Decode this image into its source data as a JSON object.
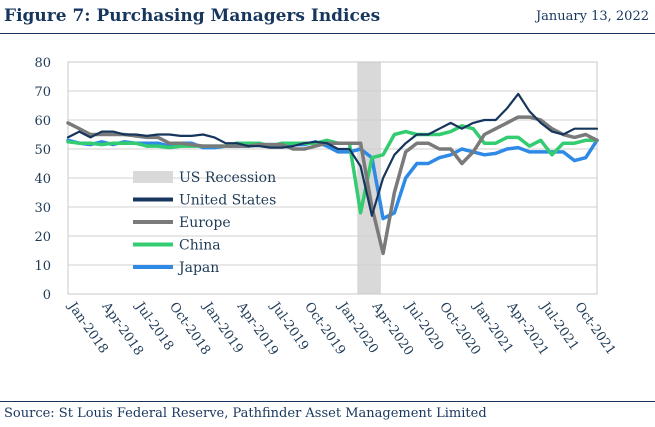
{
  "header": {
    "title": "Figure 7: Purchasing Managers Indices",
    "date": "January 13, 2022"
  },
  "footer": {
    "source": "Source: St Louis Federal Reserve, Pathfinder Asset Management Limited"
  },
  "chart_data": {
    "type": "line",
    "title": "",
    "xlabel": "",
    "ylabel": "",
    "ylim": [
      0,
      80
    ],
    "yticks": [
      0,
      10,
      20,
      30,
      40,
      50,
      60,
      70,
      80
    ],
    "grid": "horizontal",
    "legend_position": "center-left",
    "x_tick_labels": [
      "Jan-2018",
      "Apr-2018",
      "Jul-2018",
      "Oct-2018",
      "Jan-2019",
      "Apr-2019",
      "Jul-2019",
      "Oct-2019",
      "Jan-2020",
      "Apr-2020",
      "Jul-2020",
      "Oct-2020",
      "Jan-2021",
      "Apr-2021",
      "Jul-2021",
      "Oct-2021"
    ],
    "recession": {
      "label": "US Recession",
      "start_month_index": 25.7,
      "end_month_index": 27.8,
      "color": "#d9d9d9"
    },
    "x_months": [
      "Jan-2018",
      "Feb-2018",
      "Mar-2018",
      "Apr-2018",
      "May-2018",
      "Jun-2018",
      "Jul-2018",
      "Aug-2018",
      "Sep-2018",
      "Oct-2018",
      "Nov-2018",
      "Dec-2018",
      "Jan-2019",
      "Feb-2019",
      "Mar-2019",
      "Apr-2019",
      "May-2019",
      "Jun-2019",
      "Jul-2019",
      "Aug-2019",
      "Sep-2019",
      "Oct-2019",
      "Nov-2019",
      "Dec-2019",
      "Jan-2020",
      "Feb-2020",
      "Mar-2020",
      "Apr-2020",
      "May-2020",
      "Jun-2020",
      "Jul-2020",
      "Aug-2020",
      "Sep-2020",
      "Oct-2020",
      "Nov-2020",
      "Dec-2020",
      "Jan-2021",
      "Feb-2021",
      "Mar-2021",
      "Apr-2021",
      "May-2021",
      "Jun-2021",
      "Jul-2021",
      "Aug-2021",
      "Sep-2021",
      "Oct-2021",
      "Nov-2021",
      "Dec-2021"
    ],
    "series": [
      {
        "name": "Japan",
        "color": "#2e8ae6",
        "values": [
          53,
          52,
          51.5,
          52.5,
          51.5,
          52.5,
          52,
          52,
          52,
          51,
          52,
          52,
          50.5,
          50.5,
          51,
          51,
          51,
          51.5,
          51.5,
          51.5,
          51.5,
          51.5,
          52.5,
          51,
          49,
          49,
          50,
          47,
          26,
          28,
          40,
          45,
          45,
          47,
          48,
          50,
          49,
          48,
          48.5,
          50,
          50.5,
          49,
          49,
          49,
          49,
          46,
          47,
          53
        ]
      },
      {
        "name": "China",
        "color": "#33cc70",
        "values": [
          52.5,
          52,
          52,
          51.5,
          52,
          52,
          52,
          51,
          51,
          50.5,
          51,
          51,
          51,
          51,
          51,
          52,
          52,
          52,
          51,
          52,
          52,
          52,
          52,
          53,
          52,
          52,
          28,
          47,
          48,
          55,
          56,
          55,
          55,
          55,
          56,
          58,
          57,
          52,
          52,
          54,
          54,
          51,
          53,
          48,
          52,
          52,
          53,
          53
        ]
      },
      {
        "name": "Europe",
        "color": "#7a7a7a",
        "values": [
          59,
          57,
          55,
          55,
          55,
          55,
          54.5,
          54,
          54,
          52,
          52,
          51.5,
          51,
          51,
          51,
          51,
          51,
          51.5,
          51.5,
          51.5,
          50,
          50,
          51,
          52,
          52,
          52,
          52,
          30,
          14,
          35,
          49,
          52,
          52,
          50,
          50,
          45,
          49,
          55,
          57,
          59,
          61,
          61,
          60,
          57,
          55,
          54,
          55,
          53
        ]
      },
      {
        "name": "United States",
        "color": "#17365d",
        "values": [
          54,
          56,
          54,
          56,
          56,
          55,
          55,
          54.5,
          55,
          55,
          54.5,
          54.5,
          55,
          54,
          52,
          52,
          51,
          51,
          50.5,
          50.5,
          51,
          52,
          52.5,
          52,
          50,
          50,
          44,
          27,
          40,
          48,
          52,
          55,
          55,
          57,
          59,
          57,
          59,
          60,
          60,
          64,
          69,
          63,
          59,
          56,
          55,
          57,
          57,
          57
        ]
      }
    ]
  }
}
